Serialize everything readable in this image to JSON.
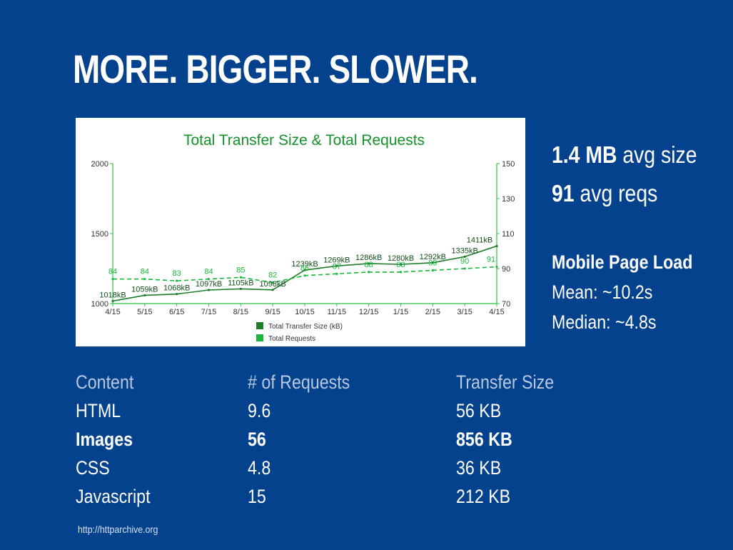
{
  "slide": {
    "title": "MORE. BIGGER. SLOWER.",
    "source": "http://httparchive.org"
  },
  "stats": {
    "size_value": "1.4 MB",
    "size_label": "avg size",
    "reqs_value": "91",
    "reqs_label": "avg reqs",
    "mobile_title": "Mobile Page Load",
    "mean": "Mean: ~10.2s",
    "median": "Median: ~4.8s"
  },
  "table": {
    "headers": [
      "Content",
      "# of Requests",
      "Transfer Size"
    ],
    "rows": [
      {
        "content": "HTML",
        "requests": "9.6",
        "size": "56 KB"
      },
      {
        "content": "Images",
        "requests": "56",
        "size": "856 KB"
      },
      {
        "content": "CSS",
        "requests": "4.8",
        "size": "36 KB"
      },
      {
        "content": "Javascript",
        "requests": "15",
        "size": "212 KB"
      }
    ]
  },
  "chart_data": {
    "type": "line",
    "title": "Total Transfer Size & Total Requests",
    "x": [
      "4/15",
      "5/15",
      "6/15",
      "7/15",
      "8/15",
      "9/15",
      "10/15",
      "11/15",
      "12/15",
      "1/15",
      "2/15",
      "3/15",
      "4/15"
    ],
    "y_left_ticks": [
      "1000",
      "1500",
      "2000"
    ],
    "y_left_range": [
      1000,
      2000
    ],
    "y_right_ticks": [
      "70",
      "90",
      "110",
      "130",
      "150"
    ],
    "y_right_range": [
      70,
      150
    ],
    "series": [
      {
        "name": "Total Transfer Size (kB)",
        "axis": "left",
        "style": "solid",
        "color": "#1e7d2a",
        "values": [
          1018,
          1059,
          1068,
          1097,
          1105,
          1098,
          1239,
          1269,
          1286,
          1280,
          1292,
          1335,
          1411
        ],
        "labels": [
          "1018kB",
          "1059kB",
          "1068kB",
          "1097kB",
          "1105kB",
          "1098kB",
          "1239kB",
          "1269kB",
          "1286kB",
          "1280kB",
          "1292kB",
          "1335kB",
          "1411kB"
        ]
      },
      {
        "name": "Total Requests",
        "axis": "right",
        "style": "dashed",
        "color": "#19b83a",
        "values": [
          84,
          84,
          83,
          84,
          85,
          82,
          86,
          87,
          88,
          88,
          89,
          90,
          91
        ],
        "labels": [
          "84",
          "84",
          "83",
          "84",
          "85",
          "82",
          "86",
          "87",
          "88",
          "88",
          "89",
          "90",
          "91"
        ]
      }
    ],
    "legend": "bottom",
    "colors": {
      "size": "#1e7d2a",
      "requests": "#19b83a",
      "axis": "#2fbf48",
      "title": "#14912a"
    }
  }
}
